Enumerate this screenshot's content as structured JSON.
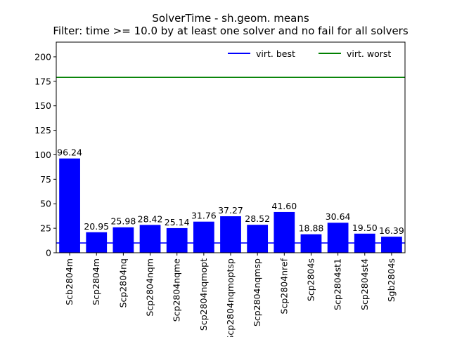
{
  "chart_data": {
    "type": "bar",
    "title": "SolverTime - sh.geom. means",
    "subtitle": "Filter: time >= 10.0 by at least one solver and no fail for all solvers",
    "xlabel": "",
    "ylabel": "",
    "ylim": [
      0,
      215
    ],
    "yticks": [
      0,
      25,
      50,
      75,
      100,
      125,
      150,
      175,
      200
    ],
    "categories": [
      "Scb2804m",
      "Scp2804m",
      "Scp2804nq",
      "Scp2804nqm",
      "Scp2804nqme",
      "Scp2804nqmopt",
      "Scp2804nqmoptsp",
      "Scp2804nqmsp",
      "Scp2804nref",
      "Scp2804s",
      "Scp2804st1",
      "Scp2804st4",
      "Sgb2804s"
    ],
    "values": [
      96.24,
      20.95,
      25.98,
      28.42,
      25.14,
      31.76,
      37.27,
      28.52,
      41.6,
      18.88,
      30.64,
      19.5,
      16.39
    ],
    "value_labels": [
      "96.24",
      "20.95",
      "25.98",
      "28.42",
      "25.14",
      "31.76",
      "37.27",
      "28.52",
      "41.60",
      "18.88",
      "30.64",
      "19.50",
      "16.39"
    ],
    "bar_color": "#0000ff",
    "reference_lines": [
      {
        "name": "virt. best",
        "value": 10.0,
        "color": "#0000ff"
      },
      {
        "name": "virt. worst",
        "value": 179.0,
        "color": "#008000"
      }
    ],
    "legend": {
      "placement": "top-right",
      "entries": [
        "virt. best",
        "virt. worst"
      ]
    },
    "grid": false
  }
}
